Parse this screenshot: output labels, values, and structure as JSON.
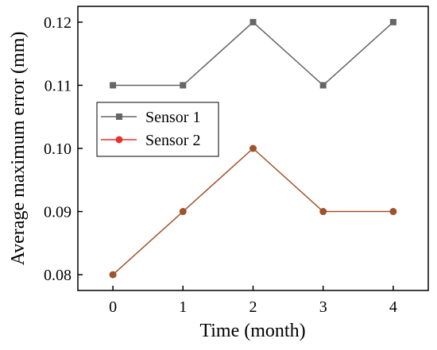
{
  "chart_data": {
    "type": "line",
    "title": "",
    "xlabel": "Time (month)",
    "ylabel": "Average maximum error (mm)",
    "x": [
      0,
      1,
      2,
      3,
      4
    ],
    "xlim": [
      -0.5,
      4.5
    ],
    "ylim": [
      0.0775,
      0.1225
    ],
    "xticks": [
      "0",
      "1",
      "2",
      "3",
      "4"
    ],
    "yticks": [
      "0.08",
      "0.09",
      "0.10",
      "0.11",
      "0.12"
    ],
    "grid": false,
    "legend_position": "center-left",
    "series": [
      {
        "name": "Sensor 1",
        "values": [
          0.11,
          0.11,
          0.12,
          0.11,
          0.12
        ],
        "color": "#666666",
        "marker": "square"
      },
      {
        "name": "Sensor 2",
        "values": [
          0.08,
          0.09,
          0.1,
          0.09,
          0.09
        ],
        "color": "#e8312f",
        "line_color": "#a0522d",
        "marker": "circle"
      }
    ]
  }
}
